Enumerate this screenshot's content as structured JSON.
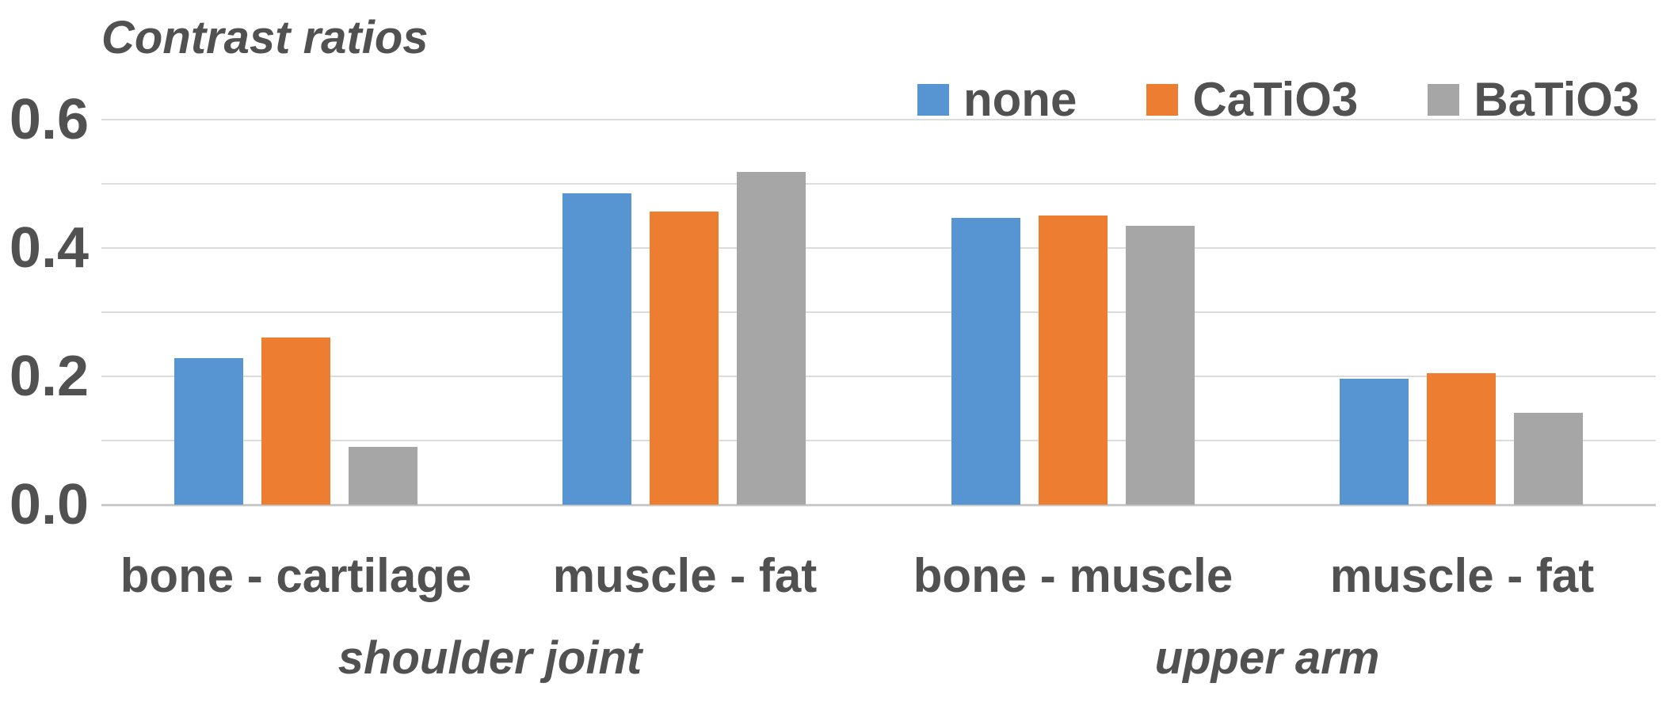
{
  "chart_data": {
    "type": "bar",
    "title": "Contrast ratios",
    "categories": [
      "bone - cartilage",
      "muscle - fat",
      "bone - muscle",
      "muscle - fat"
    ],
    "category_groups": [
      {
        "label": "shoulder joint",
        "category_indexes": [
          0,
          1
        ]
      },
      {
        "label": "upper arm",
        "category_indexes": [
          2,
          3
        ]
      }
    ],
    "series": [
      {
        "name": "none",
        "color": "#5795D2",
        "values": [
          0.228,
          0.485,
          0.447,
          0.196
        ]
      },
      {
        "name": "CaTiO3",
        "color": "#ED7D31",
        "values": [
          0.26,
          0.457,
          0.45,
          0.205
        ]
      },
      {
        "name": "BaTiO3",
        "color": "#A6A6A6",
        "values": [
          0.09,
          0.518,
          0.435,
          0.143
        ]
      }
    ],
    "ylim": [
      0,
      0.6
    ],
    "ytick_labels": [
      "0.0",
      "0.2",
      "0.4",
      "0.6"
    ],
    "ytick_values": [
      0,
      0.2,
      0.4,
      0.6
    ],
    "gridline_step": 0.1,
    "grid": true,
    "legend_position": "top-right",
    "colors": {
      "text": "#515151",
      "gridline": "#dcdcdc",
      "axis_line": "#c9c9c9",
      "background": "#ffffff"
    }
  }
}
